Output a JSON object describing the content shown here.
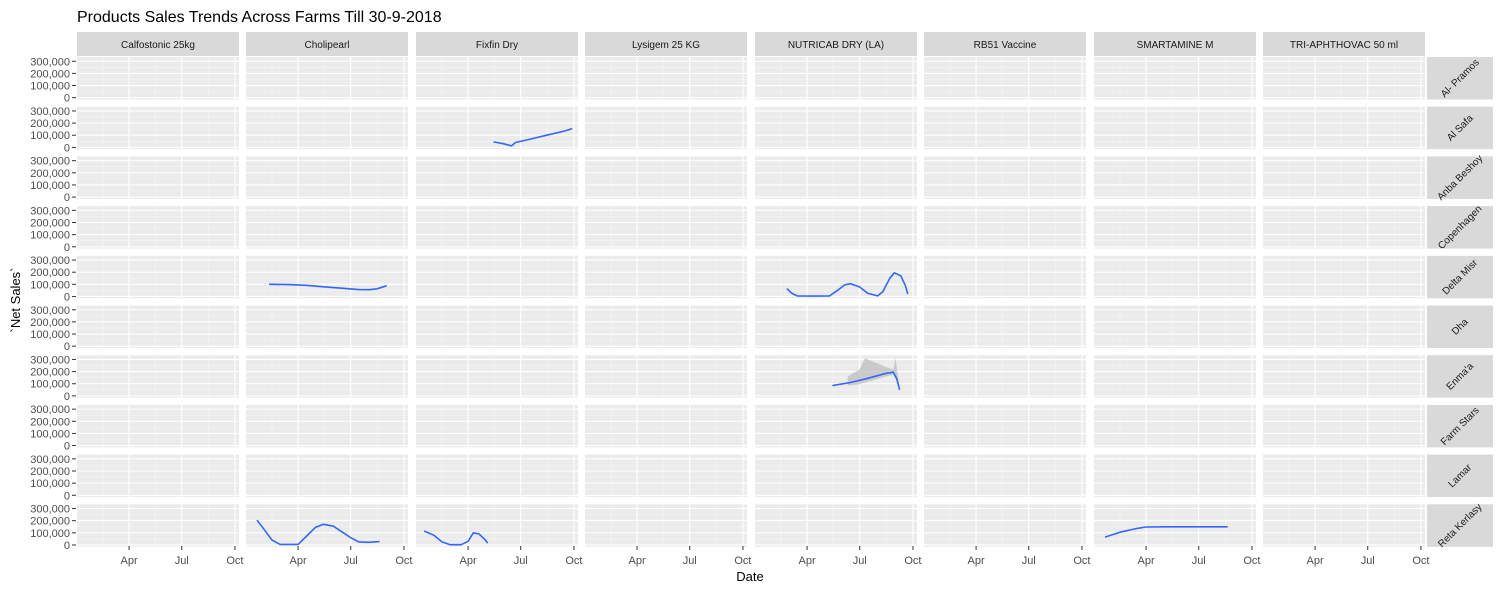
{
  "chart_data": {
    "type": "line",
    "title": "Products Sales Trends Across Farms Till 30-9-2018",
    "xlabel": "Date",
    "ylabel": "`Net Sales`",
    "x_ticks": [
      "Apr",
      "Jul",
      "Oct"
    ],
    "x_tick_dates": [
      "2018-04-01",
      "2018-07-01",
      "2018-10-01"
    ],
    "x_range": [
      "2018-01-01",
      "2018-10-08"
    ],
    "y_ticks": [
      0,
      100000,
      200000,
      300000
    ],
    "y_tick_labels": [
      "0",
      "100,000",
      "200,000",
      "300,000"
    ],
    "ylim": [
      -15000,
      335000
    ],
    "grid": true,
    "columns": [
      "Calfostonic  25kg",
      "Cholipearl",
      "Fixfin Dry",
      "Lysigem 25 KG",
      "NUTRICAB DRY  (LA)",
      "RB51 Vaccine",
      "SMARTAMINE M",
      "TRI-APHTHOVAC 50 ml"
    ],
    "rows": [
      "Al- Pramos",
      "Al Safa",
      "Anba Beshoy",
      "Copenhagen",
      "Delta Misr",
      "Dha",
      "Enma'a",
      "Farm Stars",
      "Lamar",
      "Reta Kerlasy"
    ],
    "line_color": "#3366ff",
    "band_color": "#bbbbbb",
    "series": [
      {
        "row": "Al Safa",
        "col": "Fixfin Dry",
        "points": [
          [
            "2018-05-15",
            45000
          ],
          [
            "2018-06-01",
            30000
          ],
          [
            "2018-06-15",
            12000
          ],
          [
            "2018-06-22",
            40000
          ],
          [
            "2018-07-15",
            65000
          ],
          [
            "2018-08-15",
            100000
          ],
          [
            "2018-09-15",
            135000
          ],
          [
            "2018-09-28",
            155000
          ]
        ]
      },
      {
        "row": "Delta Misr",
        "col": "Cholipearl",
        "points": [
          [
            "2018-02-10",
            100000
          ],
          [
            "2018-03-15",
            98000
          ],
          [
            "2018-04-15",
            92000
          ],
          [
            "2018-05-15",
            80000
          ],
          [
            "2018-06-15",
            68000
          ],
          [
            "2018-07-15",
            57000
          ],
          [
            "2018-08-01",
            56000
          ],
          [
            "2018-08-15",
            62000
          ],
          [
            "2018-09-01",
            88000
          ]
        ]
      },
      {
        "row": "Delta Misr",
        "col": "NUTRICAB DRY  (LA)",
        "points": [
          [
            "2018-02-25",
            65000
          ],
          [
            "2018-03-05",
            28000
          ],
          [
            "2018-03-15",
            5000
          ],
          [
            "2018-04-15",
            3000
          ],
          [
            "2018-05-10",
            5000
          ],
          [
            "2018-05-25",
            55000
          ],
          [
            "2018-06-05",
            95000
          ],
          [
            "2018-06-15",
            105000
          ],
          [
            "2018-07-01",
            78000
          ],
          [
            "2018-07-15",
            25000
          ],
          [
            "2018-08-01",
            5000
          ],
          [
            "2018-08-10",
            40000
          ],
          [
            "2018-08-22",
            150000
          ],
          [
            "2018-08-30",
            195000
          ],
          [
            "2018-09-10",
            170000
          ],
          [
            "2018-09-18",
            90000
          ],
          [
            "2018-09-22",
            20000
          ]
        ]
      },
      {
        "row": "Enma'a",
        "col": "NUTRICAB DRY  (LA)",
        "points": [
          [
            "2018-05-15",
            85000
          ],
          [
            "2018-06-15",
            110000
          ],
          [
            "2018-07-15",
            145000
          ],
          [
            "2018-08-15",
            185000
          ],
          [
            "2018-08-28",
            195000
          ],
          [
            "2018-09-03",
            140000
          ],
          [
            "2018-09-08",
            50000
          ]
        ],
        "band": [
          [
            "2018-06-10",
            85000,
            160000
          ],
          [
            "2018-07-01",
            95000,
            220000
          ],
          [
            "2018-07-10",
            110000,
            310000
          ],
          [
            "2018-08-28",
            175000,
            215000
          ],
          [
            "2018-09-01",
            140000,
            310000
          ],
          [
            "2018-09-08",
            40000,
            60000
          ]
        ]
      },
      {
        "row": "Reta Kerlasy",
        "col": "Cholipearl",
        "points": [
          [
            "2018-01-20",
            205000
          ],
          [
            "2018-02-01",
            130000
          ],
          [
            "2018-02-15",
            40000
          ],
          [
            "2018-03-01",
            5000
          ],
          [
            "2018-04-01",
            5000
          ],
          [
            "2018-04-15",
            70000
          ],
          [
            "2018-05-01",
            145000
          ],
          [
            "2018-05-15",
            170000
          ],
          [
            "2018-06-01",
            155000
          ],
          [
            "2018-06-15",
            110000
          ],
          [
            "2018-07-01",
            60000
          ],
          [
            "2018-07-15",
            25000
          ],
          [
            "2018-08-01",
            22000
          ],
          [
            "2018-08-20",
            28000
          ]
        ]
      },
      {
        "row": "Reta Kerlasy",
        "col": "Fixfin Dry",
        "points": [
          [
            "2018-01-15",
            115000
          ],
          [
            "2018-02-01",
            80000
          ],
          [
            "2018-02-15",
            25000
          ],
          [
            "2018-03-01",
            2000
          ],
          [
            "2018-03-20",
            2000
          ],
          [
            "2018-04-01",
            30000
          ],
          [
            "2018-04-10",
            100000
          ],
          [
            "2018-04-20",
            90000
          ],
          [
            "2018-05-01",
            40000
          ],
          [
            "2018-05-05",
            15000
          ]
        ]
      },
      {
        "row": "Reta Kerlasy",
        "col": "SMARTAMINE M",
        "points": [
          [
            "2018-01-20",
            65000
          ],
          [
            "2018-02-15",
            105000
          ],
          [
            "2018-03-15",
            135000
          ],
          [
            "2018-04-01",
            148000
          ],
          [
            "2018-05-01",
            150000
          ],
          [
            "2018-06-01",
            150000
          ],
          [
            "2018-07-01",
            150000
          ],
          [
            "2018-08-01",
            150000
          ],
          [
            "2018-08-20",
            150000
          ]
        ]
      }
    ]
  }
}
